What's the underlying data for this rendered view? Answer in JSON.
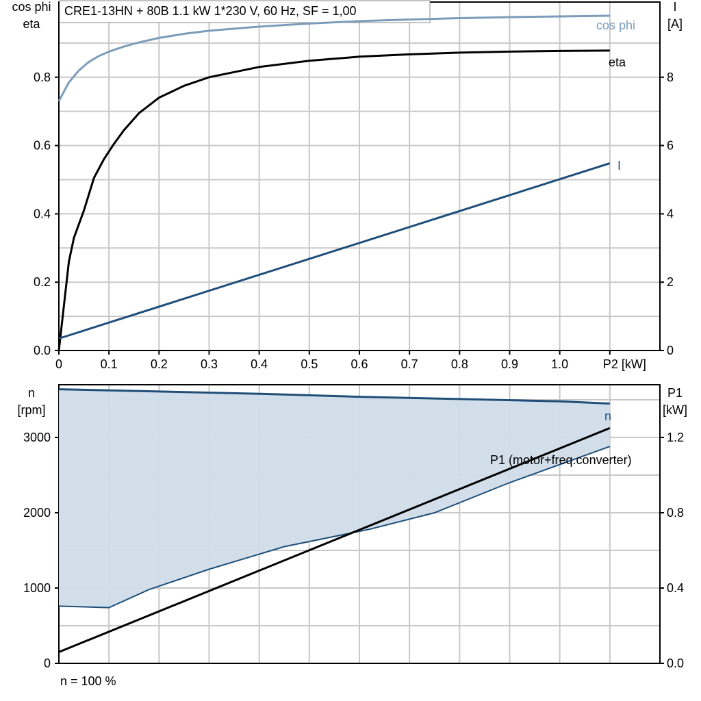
{
  "chart_data": [
    {
      "type": "line",
      "title": "CRE1-13HN + 80B   1.1 kW   1*230 V, 60 Hz, SF = 1,00",
      "xlabel": "P2 [kW]",
      "ylabel_left": [
        "cos phi",
        "eta"
      ],
      "ylabel_right": [
        "I",
        "[A]"
      ],
      "xlim": [
        0,
        1.2
      ],
      "ylim_left": [
        0,
        1.02
      ],
      "ylim_right": [
        0,
        10.2
      ],
      "x_ticks": [
        "0",
        "0.1",
        "0.2",
        "0.3",
        "0.4",
        "0.5",
        "0.6",
        "0.7",
        "0.8",
        "0.9",
        "1.0"
      ],
      "x_tick_values": [
        0,
        0.1,
        0.2,
        0.3,
        0.4,
        0.5,
        0.6,
        0.7,
        0.8,
        0.9,
        1.0
      ],
      "y_left_ticks": [
        "0.0",
        "0.2",
        "0.4",
        "0.6",
        "0.8"
      ],
      "y_left_tick_values": [
        0,
        0.2,
        0.4,
        0.6,
        0.8
      ],
      "y_right_ticks": [
        "0",
        "2",
        "4",
        "6",
        "8"
      ],
      "y_right_tick_values": [
        0,
        2,
        4,
        6,
        8
      ],
      "grid": true,
      "series": [
        {
          "name": "cos phi",
          "axis": "left",
          "color": "#7b9cba",
          "x": [
            0,
            0.02,
            0.04,
            0.06,
            0.08,
            0.1,
            0.13,
            0.16,
            0.2,
            0.25,
            0.3,
            0.4,
            0.5,
            0.6,
            0.7,
            0.8,
            0.9,
            1.0,
            1.1
          ],
          "y": [
            0.73,
            0.785,
            0.82,
            0.845,
            0.862,
            0.875,
            0.89,
            0.902,
            0.915,
            0.927,
            0.936,
            0.948,
            0.957,
            0.964,
            0.969,
            0.973,
            0.976,
            0.978,
            0.98
          ]
        },
        {
          "name": "eta",
          "axis": "left",
          "color": "#000000",
          "x": [
            0,
            0.01,
            0.02,
            0.03,
            0.05,
            0.07,
            0.09,
            0.11,
            0.13,
            0.16,
            0.2,
            0.25,
            0.3,
            0.4,
            0.5,
            0.6,
            0.7,
            0.8,
            0.9,
            1.0,
            1.1
          ],
          "y": [
            0,
            0.13,
            0.26,
            0.33,
            0.41,
            0.505,
            0.56,
            0.605,
            0.645,
            0.695,
            0.74,
            0.775,
            0.8,
            0.83,
            0.848,
            0.86,
            0.867,
            0.872,
            0.875,
            0.877,
            0.878
          ]
        },
        {
          "name": "I",
          "axis": "right",
          "color": "#1f4e79",
          "x": [
            0,
            1.1
          ],
          "y": [
            0.35,
            5.48
          ]
        }
      ]
    },
    {
      "type": "area",
      "xlim": [
        0,
        1.2
      ],
      "ylabel_left": [
        "n",
        "[rpm]"
      ],
      "ylabel_right": [
        "P1",
        "[kW]"
      ],
      "ylim_left": [
        0,
        3700
      ],
      "ylim_right": [
        0,
        1.48
      ],
      "y_left_ticks": [
        "0",
        "1000",
        "2000",
        "3000"
      ],
      "y_left_tick_values": [
        0,
        1000,
        2000,
        3000
      ],
      "y_right_ticks": [
        "0.0",
        "0.4",
        "0.8",
        "1.2"
      ],
      "y_right_tick_values": [
        0,
        0.4,
        0.8,
        1.2
      ],
      "grid": true,
      "series": [
        {
          "name": "n",
          "axis": "left",
          "color": "#1f4e79",
          "x": [
            0,
            0.2,
            0.4,
            0.6,
            0.8,
            1.0,
            1.1
          ],
          "y": [
            3640,
            3610,
            3580,
            3540,
            3510,
            3480,
            3450
          ]
        },
        {
          "name": "P1 (motor+freq.converter)",
          "axis": "right",
          "color": "#000000",
          "x": [
            0,
            1.1
          ],
          "y": [
            0.06,
            1.25
          ]
        },
        {
          "axis": "left",
          "color": "#1f4e79",
          "x": [
            0,
            0.1,
            0.18,
            0.3,
            0.45,
            0.62,
            0.75,
            0.9,
            1.1
          ],
          "y": [
            760,
            740,
            980,
            1250,
            1550,
            1780,
            2000,
            2400,
            2880
          ]
        }
      ],
      "band_fill": "#d0dce8"
    }
  ],
  "footer": "n = 100 %"
}
